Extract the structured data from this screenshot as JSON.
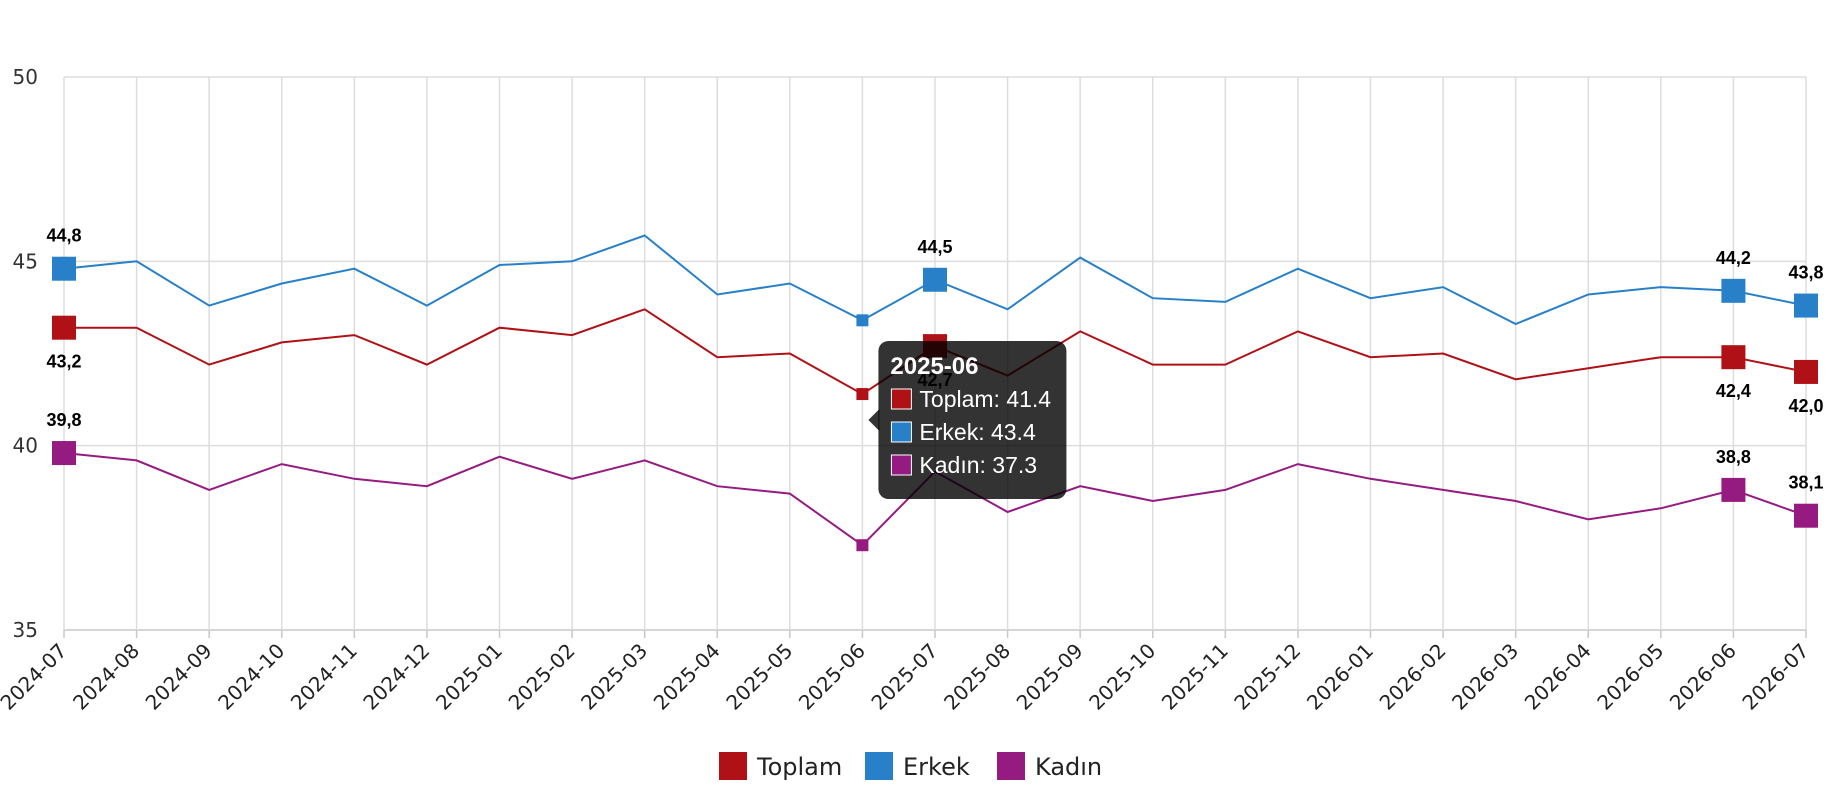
{
  "chart_data": {
    "type": "line",
    "categories": [
      "2024-07",
      "2024-08",
      "2024-09",
      "2024-10",
      "2024-11",
      "2024-12",
      "2025-01",
      "2025-02",
      "2025-03",
      "2025-04",
      "2025-05",
      "2025-06",
      "2025-07",
      "2025-08",
      "2025-09",
      "2025-10",
      "2025-11",
      "2025-12",
      "2026-01",
      "2026-02",
      "2026-03",
      "2026-04",
      "2026-05",
      "2026-06",
      "2026-07"
    ],
    "ylim": [
      35,
      50
    ],
    "yticks": [
      35,
      40,
      45,
      50
    ],
    "grid": true,
    "legend_position": "bottom-center",
    "series": [
      {
        "name": "Toplam",
        "color": "#b01116",
        "values": [
          43.2,
          43.2,
          42.2,
          42.8,
          43.0,
          42.2,
          43.2,
          43.0,
          43.7,
          42.4,
          42.5,
          41.4,
          42.7,
          41.9,
          43.1,
          42.2,
          42.2,
          43.1,
          42.4,
          42.5,
          41.8,
          42.1,
          42.4,
          42.4,
          42.0
        ]
      },
      {
        "name": "Erkek",
        "color": "#2780c8",
        "values": [
          44.8,
          45.0,
          43.8,
          44.4,
          44.8,
          43.8,
          44.9,
          45.0,
          45.7,
          44.1,
          44.4,
          43.4,
          44.5,
          43.7,
          45.1,
          44.0,
          43.9,
          44.8,
          44.0,
          44.3,
          43.3,
          44.1,
          44.3,
          44.2,
          43.8
        ]
      },
      {
        "name": "Kadın",
        "color": "#951b81",
        "values": [
          39.8,
          39.6,
          38.8,
          39.5,
          39.1,
          38.9,
          39.7,
          39.1,
          39.6,
          38.9,
          38.7,
          37.3,
          39.3,
          38.2,
          38.9,
          38.5,
          38.8,
          39.5,
          39.1,
          38.8,
          38.5,
          38.0,
          38.3,
          38.8,
          38.1
        ]
      }
    ],
    "data_labels": [
      {
        "series": 0,
        "index": 0,
        "text": "43,2",
        "pos": "below"
      },
      {
        "series": 0,
        "index": 12,
        "text": "42,7",
        "pos": "below"
      },
      {
        "series": 0,
        "index": 23,
        "text": "42,4",
        "pos": "below"
      },
      {
        "series": 0,
        "index": 24,
        "text": "42,0",
        "pos": "below"
      },
      {
        "series": 1,
        "index": 0,
        "text": "44,8",
        "pos": "above"
      },
      {
        "series": 1,
        "index": 12,
        "text": "44,5",
        "pos": "above"
      },
      {
        "series": 1,
        "index": 23,
        "text": "44,2",
        "pos": "above"
      },
      {
        "series": 1,
        "index": 24,
        "text": "43,8",
        "pos": "above"
      },
      {
        "series": 2,
        "index": 0,
        "text": "39,8",
        "pos": "above"
      },
      {
        "series": 2,
        "index": 23,
        "text": "38,8",
        "pos": "above"
      },
      {
        "series": 2,
        "index": 24,
        "text": "38,1",
        "pos": "above"
      }
    ],
    "tooltip": {
      "index": 11,
      "title": "2025-06",
      "items": [
        "Toplam: 41.4",
        "Erkek: 43.4",
        "Kadın: 37.3"
      ]
    }
  }
}
